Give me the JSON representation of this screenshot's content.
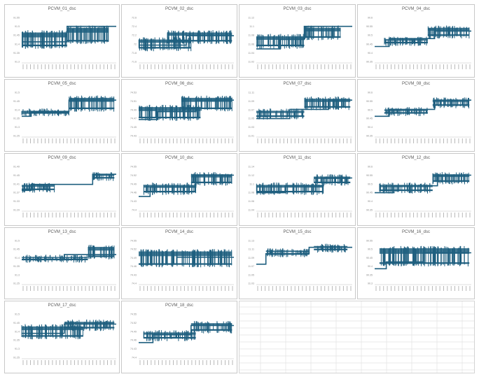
{
  "colors": {
    "series": "#1f5f7f",
    "axis": "#bfbfbf",
    "tick": "#8a8a8a",
    "title": "#595959"
  },
  "charts_layout": {
    "columns": 4,
    "rows": 5,
    "empty_area": "bottom-right spreadsheet grid"
  },
  "chart_data": [
    {
      "type": "line",
      "title": "PCVM_01_dsc",
      "y_ticks": [
        "91.55",
        "91.5",
        "91.45",
        "91.4",
        "91.35",
        "91.3"
      ],
      "steps": [
        {
          "from": 0,
          "to": 0.1,
          "level": 0.45
        },
        {
          "from": 0.1,
          "to": 0.48,
          "level": 0.45
        },
        {
          "from": 0.48,
          "to": 1,
          "level": 0.78
        }
      ],
      "noise": [
        {
          "from": 0.0,
          "to": 0.48,
          "low": 0.3,
          "high": 0.7
        },
        {
          "from": 0.48,
          "to": 0.92,
          "low": 0.4,
          "high": 0.8
        }
      ]
    },
    {
      "type": "line",
      "title": "PCVM_02_dsc",
      "y_ticks": [
        "72.6",
        "72.4",
        "72.2",
        "72",
        "71.8",
        "71.6"
      ],
      "steps": [
        {
          "from": 0,
          "to": 0.5,
          "level": 0.38
        },
        {
          "from": 0.5,
          "to": 1,
          "level": 0.58
        }
      ],
      "noise": [
        {
          "from": 0.0,
          "to": 0.55,
          "low": 0.25,
          "high": 0.55
        },
        {
          "from": 0.3,
          "to": 0.98,
          "low": 0.4,
          "high": 0.7
        }
      ]
    },
    {
      "type": "line",
      "title": "PCVM_03_dsc",
      "y_ticks": [
        "11.12",
        "11.1",
        "11.08",
        "11.06",
        "11.04",
        "11.02"
      ],
      "steps": [
        {
          "from": 0,
          "to": 0.25,
          "level": 0.3
        },
        {
          "from": 0.25,
          "to": 0.5,
          "level": 0.5
        },
        {
          "from": 0.5,
          "to": 1,
          "level": 0.78
        }
      ],
      "noise": [
        {
          "from": 0.0,
          "to": 0.5,
          "low": 0.3,
          "high": 0.62
        },
        {
          "from": 0.5,
          "to": 0.88,
          "low": 0.48,
          "high": 0.8
        }
      ]
    },
    {
      "type": "line",
      "title": "PCVM_04_dsc",
      "y_ticks": [
        "90.6",
        "90.55",
        "90.5",
        "90.45",
        "90.4",
        "90.35"
      ],
      "steps": [
        {
          "from": 0,
          "to": 0.15,
          "level": 0.35
        },
        {
          "from": 0.15,
          "to": 0.62,
          "level": 0.52
        },
        {
          "from": 0.62,
          "to": 1,
          "level": 0.68
        }
      ],
      "noise": [
        {
          "from": 0.1,
          "to": 0.55,
          "low": 0.36,
          "high": 0.56
        },
        {
          "from": 0.55,
          "to": 0.98,
          "low": 0.52,
          "high": 0.8
        }
      ]
    },
    {
      "type": "line",
      "title": "PCVM_05_dsc",
      "y_ticks": [
        "91.5",
        "91.45",
        "91.4",
        "91.35",
        "91.3",
        "91.25"
      ],
      "steps": [
        {
          "from": 0,
          "to": 0.1,
          "level": 0.45
        },
        {
          "from": 0.1,
          "to": 0.5,
          "level": 0.55
        },
        {
          "from": 0.5,
          "to": 1,
          "level": 0.8
        }
      ],
      "noise": [
        {
          "from": 0.0,
          "to": 0.5,
          "low": 0.45,
          "high": 0.62
        },
        {
          "from": 0.5,
          "to": 0.98,
          "low": 0.55,
          "high": 0.9
        }
      ]
    },
    {
      "type": "line",
      "title": "PCVM_06_dsc",
      "y_ticks": [
        "74.53",
        "74.51",
        "74.49",
        "74.47",
        "74.45",
        "74.43"
      ],
      "steps": [
        {
          "from": 0,
          "to": 0.2,
          "level": 0.38
        },
        {
          "from": 0.2,
          "to": 0.6,
          "level": 0.55
        },
        {
          "from": 0.6,
          "to": 1,
          "level": 0.8
        }
      ],
      "noise": [
        {
          "from": 0.0,
          "to": 0.65,
          "low": 0.35,
          "high": 0.7
        },
        {
          "from": 0.45,
          "to": 0.98,
          "low": 0.55,
          "high": 0.9
        }
      ]
    },
    {
      "type": "line",
      "title": "PCVM_07_dsc",
      "y_ticks": [
        "11.11",
        "11.09",
        "11.07",
        "11.05",
        "11.03",
        "11.01"
      ],
      "steps": [
        {
          "from": 0,
          "to": 0.35,
          "level": 0.4
        },
        {
          "from": 0.35,
          "to": 0.75,
          "level": 0.6
        },
        {
          "from": 0.75,
          "to": 1,
          "level": 0.8
        }
      ],
      "noise": [
        {
          "from": 0.0,
          "to": 0.5,
          "low": 0.38,
          "high": 0.62
        },
        {
          "from": 0.5,
          "to": 0.98,
          "low": 0.58,
          "high": 0.88
        }
      ]
    },
    {
      "type": "line",
      "title": "PCVM_08_dsc",
      "y_ticks": [
        "90.6",
        "90.55",
        "90.5",
        "90.45",
        "90.4",
        "90.35"
      ],
      "steps": [
        {
          "from": 0,
          "to": 0.15,
          "level": 0.45
        },
        {
          "from": 0.15,
          "to": 0.62,
          "level": 0.6
        },
        {
          "from": 0.62,
          "to": 1,
          "level": 0.8
        }
      ],
      "noise": [
        {
          "from": 0.1,
          "to": 0.55,
          "low": 0.45,
          "high": 0.65
        },
        {
          "from": 0.6,
          "to": 0.98,
          "low": 0.62,
          "high": 0.86
        }
      ]
    },
    {
      "type": "line",
      "title": "PCVM_09_dsc",
      "y_ticks": [
        "91.49",
        "91.45",
        "91.41",
        "91.37",
        "91.33",
        "91.29"
      ],
      "steps": [
        {
          "from": 0,
          "to": 0.1,
          "level": 0.45
        },
        {
          "from": 0.1,
          "to": 0.75,
          "level": 0.58
        },
        {
          "from": 0.75,
          "to": 1,
          "level": 0.8
        }
      ],
      "noise": [
        {
          "from": 0.0,
          "to": 0.35,
          "low": 0.4,
          "high": 0.62
        },
        {
          "from": 0.75,
          "to": 0.98,
          "low": 0.65,
          "high": 0.85
        }
      ]
    },
    {
      "type": "line",
      "title": "PCVM_10_dsc",
      "y_ticks": [
        "74.55",
        "74.52",
        "74.49",
        "74.46",
        "74.43",
        "74.4"
      ],
      "steps": [
        {
          "from": 0,
          "to": 0.12,
          "level": 0.32
        },
        {
          "from": 0.12,
          "to": 0.6,
          "level": 0.52
        },
        {
          "from": 0.6,
          "to": 1,
          "level": 0.78
        }
      ],
      "noise": [
        {
          "from": 0.05,
          "to": 0.6,
          "low": 0.35,
          "high": 0.62
        },
        {
          "from": 0.55,
          "to": 0.98,
          "low": 0.55,
          "high": 0.85
        }
      ]
    },
    {
      "type": "line",
      "title": "PCVM_11_dsc",
      "y_ticks": [
        "11.14",
        "11.12",
        "11.1",
        "11.08",
        "11.06",
        "11.04"
      ],
      "steps": [
        {
          "from": 0,
          "to": 0.3,
          "level": 0.4
        },
        {
          "from": 0.3,
          "to": 0.7,
          "level": 0.55
        },
        {
          "from": 0.7,
          "to": 1,
          "level": 0.72
        }
      ],
      "noise": [
        {
          "from": 0.0,
          "to": 0.7,
          "low": 0.35,
          "high": 0.62
        },
        {
          "from": 0.6,
          "to": 0.98,
          "low": 0.55,
          "high": 0.8
        }
      ]
    },
    {
      "type": "line",
      "title": "PCVM_12_dsc",
      "y_ticks": [
        "90.6",
        "90.55",
        "90.5",
        "90.45",
        "90.4",
        "90.35"
      ],
      "steps": [
        {
          "from": 0,
          "to": 0.2,
          "level": 0.4
        },
        {
          "from": 0.2,
          "to": 0.65,
          "level": 0.55
        },
        {
          "from": 0.65,
          "to": 1,
          "level": 0.78
        }
      ],
      "noise": [
        {
          "from": 0.05,
          "to": 0.6,
          "low": 0.38,
          "high": 0.62
        },
        {
          "from": 0.6,
          "to": 0.98,
          "low": 0.58,
          "high": 0.85
        }
      ]
    },
    {
      "type": "line",
      "title": "PCVM_13_dsc",
      "y_ticks": [
        "91.5",
        "91.45",
        "91.4",
        "91.35",
        "91.3",
        "91.25"
      ],
      "steps": [
        {
          "from": 0,
          "to": 0.45,
          "level": 0.55
        },
        {
          "from": 0.45,
          "to": 1,
          "level": 0.66
        }
      ],
      "noise": [
        {
          "from": 0.0,
          "to": 0.7,
          "low": 0.48,
          "high": 0.66
        },
        {
          "from": 0.7,
          "to": 0.98,
          "low": 0.55,
          "high": 0.88
        }
      ]
    },
    {
      "type": "line",
      "title": "PCVM_14_dsc",
      "y_ticks": [
        "74.55",
        "74.52",
        "74.49",
        "74.46",
        "74.43",
        "74.4"
      ],
      "steps": [
        {
          "from": 0,
          "to": 0.4,
          "level": 0.45
        },
        {
          "from": 0.4,
          "to": 1,
          "level": 0.6
        }
      ],
      "noise": [
        {
          "from": 0.0,
          "to": 0.98,
          "low": 0.38,
          "high": 0.78
        }
      ]
    },
    {
      "type": "line",
      "title": "PCVM_15_dsc",
      "y_ticks": [
        "11.13",
        "11.11",
        "11.09",
        "11.07",
        "11.05",
        "11.03"
      ],
      "steps": [
        {
          "from": 0,
          "to": 0.1,
          "level": 0.45
        },
        {
          "from": 0.1,
          "to": 0.55,
          "level": 0.68
        },
        {
          "from": 0.55,
          "to": 1,
          "level": 0.82
        }
      ],
      "noise": [
        {
          "from": 0.1,
          "to": 0.55,
          "low": 0.6,
          "high": 0.8
        },
        {
          "from": 0.6,
          "to": 0.95,
          "low": 0.7,
          "high": 0.9
        }
      ]
    },
    {
      "type": "line",
      "title": "PCVM_16_dsc",
      "y_ticks": [
        "90.55",
        "90.5",
        "90.45",
        "90.4",
        "90.35",
        "90.3"
      ],
      "steps": [
        {
          "from": 0,
          "to": 0.12,
          "level": 0.35
        },
        {
          "from": 0.12,
          "to": 0.5,
          "level": 0.5
        },
        {
          "from": 0.5,
          "to": 1,
          "level": 0.7
        }
      ],
      "noise": [
        {
          "from": 0.05,
          "to": 0.98,
          "low": 0.4,
          "high": 0.85
        }
      ]
    },
    {
      "type": "line",
      "title": "PCVM_17_dsc",
      "y_ticks": [
        "91.5",
        "91.45",
        "91.4",
        "91.35",
        "91.3",
        "91.25"
      ],
      "steps": [
        {
          "from": 0,
          "to": 0.45,
          "level": 0.55
        },
        {
          "from": 0.45,
          "to": 1,
          "level": 0.75
        }
      ],
      "noise": [
        {
          "from": 0.0,
          "to": 0.65,
          "low": 0.42,
          "high": 0.75
        },
        {
          "from": 0.45,
          "to": 0.98,
          "low": 0.6,
          "high": 0.85
        }
      ]
    },
    {
      "type": "line",
      "title": "PCVM_18_dsc",
      "y_ticks": [
        "74.55",
        "74.52",
        "74.49",
        "74.46",
        "74.43",
        "74.4"
      ],
      "steps": [
        {
          "from": 0,
          "to": 0.15,
          "level": 0.35
        },
        {
          "from": 0.15,
          "to": 0.55,
          "level": 0.52
        },
        {
          "from": 0.55,
          "to": 1,
          "level": 0.72
        }
      ],
      "noise": [
        {
          "from": 0.05,
          "to": 0.6,
          "low": 0.38,
          "high": 0.62
        },
        {
          "from": 0.55,
          "to": 0.98,
          "low": 0.55,
          "high": 0.82
        }
      ]
    }
  ]
}
